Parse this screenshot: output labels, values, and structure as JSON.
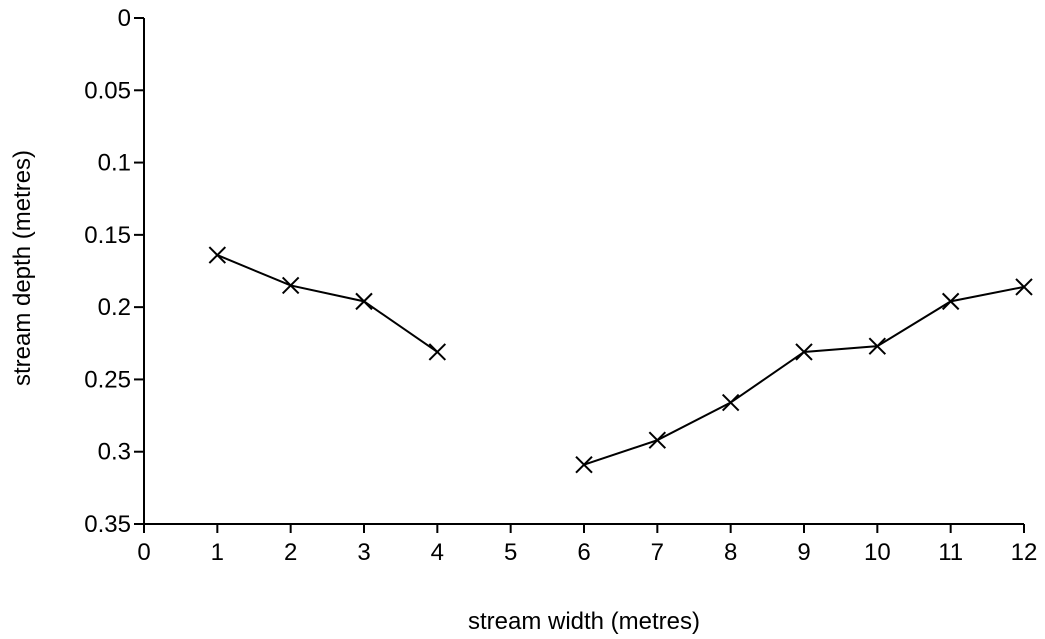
{
  "chart_data": {
    "type": "line",
    "title": "",
    "xlabel": "stream width (metres)",
    "ylabel": "stream depth (metres)",
    "xlim": [
      0,
      12
    ],
    "ylim": [
      0,
      0.35
    ],
    "y_axis_inverted": true,
    "grid": false,
    "legend": "none",
    "marker": "x",
    "line_color": "#000000",
    "x_ticks": [
      {
        "value": 0,
        "label": "0"
      },
      {
        "value": 1,
        "label": "1"
      },
      {
        "value": 2,
        "label": "2"
      },
      {
        "value": 3,
        "label": "3"
      },
      {
        "value": 4,
        "label": "4"
      },
      {
        "value": 5,
        "label": "5"
      },
      {
        "value": 6,
        "label": "6"
      },
      {
        "value": 7,
        "label": "7"
      },
      {
        "value": 8,
        "label": "8"
      },
      {
        "value": 9,
        "label": "9"
      },
      {
        "value": 10,
        "label": "10"
      },
      {
        "value": 11,
        "label": "11"
      },
      {
        "value": 12,
        "label": "12"
      }
    ],
    "y_ticks": [
      {
        "value": 0,
        "label": "0"
      },
      {
        "value": 0.05,
        "label": "0.05"
      },
      {
        "value": 0.1,
        "label": "0.1"
      },
      {
        "value": 0.15,
        "label": "0.15"
      },
      {
        "value": 0.2,
        "label": "0.2"
      },
      {
        "value": 0.25,
        "label": "0.25"
      },
      {
        "value": 0.3,
        "label": "0.3"
      },
      {
        "value": 0.35,
        "label": "0.35"
      }
    ],
    "segments": [
      [
        {
          "x": 1,
          "y": 0.164
        },
        {
          "x": 2,
          "y": 0.185
        },
        {
          "x": 3,
          "y": 0.196
        },
        {
          "x": 4,
          "y": 0.231
        }
      ],
      [
        {
          "x": 6,
          "y": 0.309
        },
        {
          "x": 7,
          "y": 0.292
        },
        {
          "x": 8,
          "y": 0.266
        },
        {
          "x": 9,
          "y": 0.231
        },
        {
          "x": 10,
          "y": 0.227
        },
        {
          "x": 11,
          "y": 0.196
        },
        {
          "x": 12,
          "y": 0.186
        }
      ]
    ]
  }
}
